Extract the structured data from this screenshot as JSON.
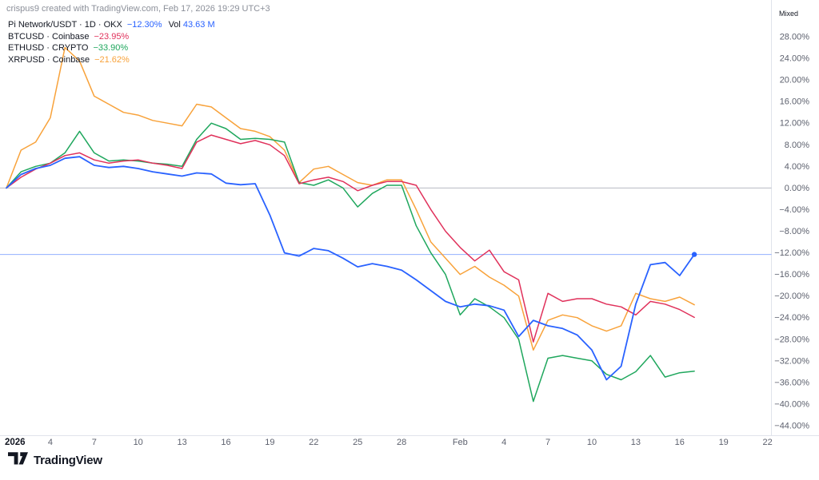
{
  "attribution": "crispus9 created with TradingView.com, Feb 17, 2026 19:29 UTC+3",
  "status_badge": "Mixed",
  "logo_text": "TradingView",
  "colors": {
    "background": "#FFFFFF",
    "axis_border": "#E0E3EB",
    "zero_line": "#B7BAC3",
    "axis_text": "#5D616E",
    "pi_blue": "#2962FF",
    "btc_red": "#E0315B",
    "eth_green": "#1FA75D",
    "xrp_orange": "#F8A23A"
  },
  "legend": [
    {
      "title": "Pi Network/USDT · 1D · OKX",
      "change": "−12.30%",
      "vol_label": "Vol",
      "vol_value": "43.63 M",
      "color": "#2962FF"
    },
    {
      "title": "BTCUSD · Coinbase",
      "change": "−23.95%",
      "color": "#E0315B"
    },
    {
      "title": "ETHUSD · CRYPTO",
      "change": "−33.90%",
      "color": "#1FA75D"
    },
    {
      "title": "XRPUSD · Coinbase",
      "change": "−21.62%",
      "color": "#F8A23A"
    }
  ],
  "chart_data": {
    "type": "line",
    "title": "Pi Network/USDT compared to BTC, ETH, XRP — % change since Jan 1, 2026",
    "y_axis": {
      "min": -44,
      "max": 28,
      "step": 4,
      "format": "percent"
    },
    "x_axis": {
      "unit": "days since Jan 1, 2026",
      "range_days": [
        0,
        52
      ],
      "interval_days": 1
    },
    "grid": "off",
    "zero_line": 0,
    "current_price_line": {
      "value": -12.3,
      "color": "#2962FF"
    },
    "x_ticks": [
      {
        "label": "2026",
        "day": 0,
        "bold": true
      },
      {
        "label": "4",
        "day": 3
      },
      {
        "label": "7",
        "day": 6
      },
      {
        "label": "10",
        "day": 9
      },
      {
        "label": "13",
        "day": 12
      },
      {
        "label": "16",
        "day": 15
      },
      {
        "label": "19",
        "day": 18
      },
      {
        "label": "22",
        "day": 21
      },
      {
        "label": "25",
        "day": 24
      },
      {
        "label": "28",
        "day": 27
      },
      {
        "label": "Feb",
        "day": 31
      },
      {
        "label": "4",
        "day": 34
      },
      {
        "label": "7",
        "day": 37
      },
      {
        "label": "10",
        "day": 40
      },
      {
        "label": "13",
        "day": 43
      },
      {
        "label": "16",
        "day": 46
      },
      {
        "label": "19",
        "day": 49
      },
      {
        "label": "22",
        "day": 52
      }
    ],
    "series": [
      {
        "id": "xrp",
        "name": "XRPUSD",
        "color": "#F8A23A",
        "end_marker": false,
        "values": [
          0,
          7.0,
          8.5,
          13.0,
          26.0,
          23.5,
          17.0,
          15.5,
          14.0,
          13.5,
          12.5,
          12.0,
          11.5,
          15.5,
          15.0,
          13.0,
          11.0,
          10.5,
          9.5,
          7.0,
          1.0,
          3.5,
          4.0,
          2.5,
          1.0,
          0.5,
          1.5,
          1.5,
          -4.0,
          -10.0,
          -13.0,
          -16.0,
          -14.5,
          -16.5,
          -18.0,
          -20.0,
          -30.0,
          -24.5,
          -23.5,
          -24.0,
          -25.5,
          -26.5,
          -25.5,
          -19.5,
          -20.5,
          -21.0,
          -20.2,
          -21.62
        ]
      },
      {
        "id": "eth",
        "name": "ETHUSD",
        "color": "#1FA75D",
        "end_marker": false,
        "values": [
          0,
          3.0,
          4.0,
          4.6,
          6.5,
          10.5,
          6.5,
          5.0,
          5.2,
          5.0,
          4.6,
          4.4,
          4.0,
          9.0,
          12.0,
          11.0,
          9.0,
          9.2,
          9.0,
          8.5,
          1.0,
          0.5,
          1.5,
          0.0,
          -3.5,
          -1.0,
          0.5,
          0.5,
          -7.0,
          -12.0,
          -16.0,
          -23.5,
          -20.5,
          -22.0,
          -24.0,
          -28.0,
          -39.5,
          -31.5,
          -31.0,
          -31.5,
          -32.0,
          -34.5,
          -35.5,
          -34.0,
          -31.0,
          -35.0,
          -34.2,
          -33.9
        ]
      },
      {
        "id": "btc",
        "name": "BTCUSD",
        "color": "#E0315B",
        "end_marker": false,
        "values": [
          0,
          2.0,
          3.5,
          4.6,
          6.0,
          6.5,
          5.2,
          4.6,
          5.0,
          5.2,
          4.6,
          4.2,
          3.6,
          8.5,
          9.8,
          9.0,
          8.2,
          8.8,
          8.0,
          6.0,
          0.8,
          1.5,
          2.0,
          1.2,
          -0.5,
          0.5,
          1.2,
          1.2,
          0.5,
          -4.0,
          -8.0,
          -11.0,
          -13.5,
          -11.5,
          -15.5,
          -17.0,
          -28.5,
          -19.5,
          -21.0,
          -20.5,
          -20.5,
          -21.5,
          -22.0,
          -23.5,
          -21.0,
          -21.5,
          -22.5,
          -23.95
        ]
      },
      {
        "id": "pi",
        "name": "Pi Network/USDT",
        "color": "#2962FF",
        "end_marker": true,
        "values": [
          0,
          2.5,
          3.6,
          4.2,
          5.5,
          5.8,
          4.2,
          3.8,
          4.0,
          3.6,
          3.0,
          2.6,
          2.2,
          2.8,
          2.6,
          0.9,
          0.6,
          0.8,
          -5.0,
          -12.0,
          -12.6,
          -11.2,
          -11.6,
          -13.0,
          -14.6,
          -14.0,
          -14.5,
          -15.2,
          -17.0,
          -19.0,
          -21.0,
          -22.0,
          -21.5,
          -21.8,
          -22.6,
          -27.5,
          -24.5,
          -25.5,
          -26.0,
          -27.2,
          -30.0,
          -35.5,
          -33.0,
          -21.5,
          -14.2,
          -13.8,
          -16.2,
          -12.3
        ]
      }
    ]
  }
}
